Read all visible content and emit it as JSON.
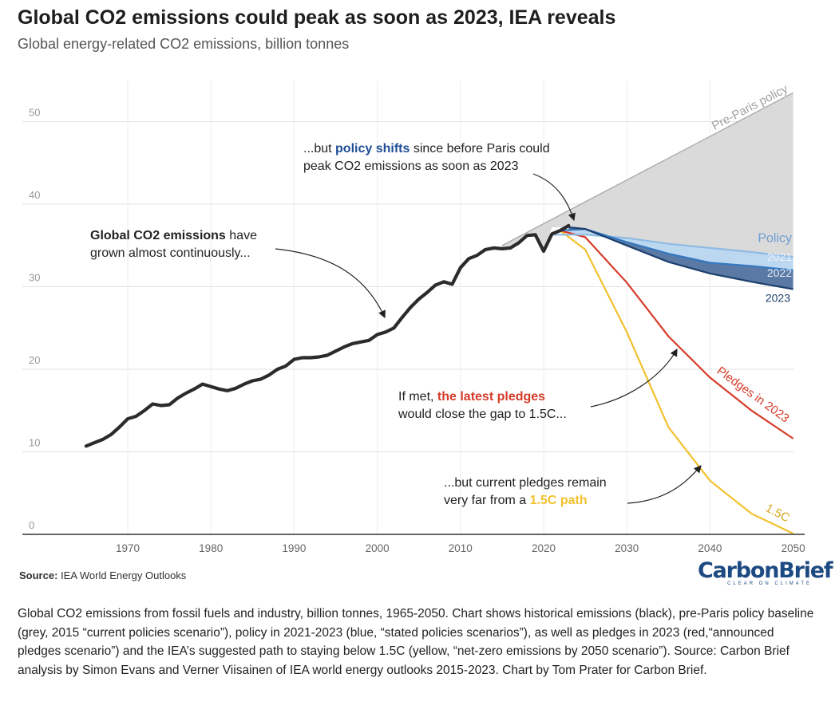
{
  "header": {
    "title": "Global CO2 emissions could peak as soon as 2023, IEA reveals",
    "subtitle": "Global energy-related CO2 emissions, billion tonnes"
  },
  "footer": {
    "source_prefix": "Source:",
    "source_text": "IEA World Energy Outlooks",
    "logo_text": "CarbonBrief",
    "logo_tagline": "CLEAR ON CLIMATE",
    "caption": "Global CO2 emissions from fossil fuels and industry, billion tonnes, 1965-2050. Chart shows historical emissions (black), pre-Paris policy baseline (grey, 2015 “current policies scenario”), policy in 2021-2023 (blue, “stated policies scenarios”), as well as pledges in 2023 (red,“announced pledges scenario”) and the IEA’s suggested path to staying below 1.5C (yellow, “net-zero emissions by 2050 scenario”). Source: Carbon Brief analysis by Simon Evans and Verner Viisainen of IEA world energy outlooks 2015-2023. Chart by Tom Prater for Carbon Brief."
  },
  "colors": {
    "historical": "#2b2b2b",
    "pre_paris_fill": "#dadada",
    "pre_paris_line": "#a8a8a8",
    "policy_2021": "#8fbbe3",
    "policy_2022": "#3478c0",
    "policy_2023": "#1d3f6e",
    "policy_band_light": "#bcd7f0",
    "policy_band_dark": "#5a7aa5",
    "pledges": "#d63c2a",
    "one_point_five": "#f2c12e",
    "annotation_blue": "#1f4e96",
    "annotation_red": "#d63c2a",
    "annotation_yellow": "#f2c12e"
  },
  "chart_data": {
    "type": "line",
    "xlim": [
      1965,
      2050
    ],
    "ylim": [
      0,
      55
    ],
    "x_ticks": [
      1970,
      1980,
      1990,
      2000,
      2010,
      2020,
      2030,
      2040,
      2050
    ],
    "y_ticks": [
      0,
      10,
      20,
      30,
      40,
      50
    ],
    "grid": true,
    "series": [
      {
        "key": "historical",
        "x": [
          1965,
          1966,
          1967,
          1968,
          1969,
          1970,
          1971,
          1972,
          1973,
          1974,
          1975,
          1976,
          1977,
          1978,
          1979,
          1980,
          1981,
          1982,
          1983,
          1984,
          1985,
          1986,
          1987,
          1988,
          1989,
          1990,
          1991,
          1992,
          1993,
          1994,
          1995,
          1996,
          1997,
          1998,
          1999,
          2000,
          2001,
          2002,
          2003,
          2004,
          2005,
          2006,
          2007,
          2008,
          2009,
          2010,
          2011,
          2012,
          2013,
          2014,
          2015,
          2016,
          2017,
          2018,
          2019,
          2020,
          2021,
          2022,
          2023
        ],
        "y": [
          10.7,
          11.1,
          11.5,
          12.1,
          13.0,
          14.0,
          14.3,
          15.0,
          15.8,
          15.6,
          15.7,
          16.5,
          17.1,
          17.6,
          18.2,
          17.9,
          17.6,
          17.4,
          17.7,
          18.2,
          18.6,
          18.8,
          19.3,
          20.0,
          20.4,
          21.2,
          21.4,
          21.4,
          21.5,
          21.7,
          22.2,
          22.7,
          23.1,
          23.3,
          23.5,
          24.2,
          24.5,
          25.0,
          26.3,
          27.5,
          28.5,
          29.3,
          30.2,
          30.6,
          30.3,
          32.3,
          33.4,
          33.8,
          34.5,
          34.7,
          34.6,
          34.7,
          35.3,
          36.2,
          36.3,
          34.3,
          36.4,
          36.8,
          37.4
        ]
      },
      {
        "key": "pre_paris",
        "name": "Pre-Paris policy",
        "x": [
          2015,
          2050
        ],
        "y": [
          35.0,
          53.5
        ]
      },
      {
        "key": "policy_2021",
        "name": "2021",
        "x": [
          2021,
          2025,
          2030,
          2035,
          2040,
          2045,
          2050
        ],
        "y": [
          36.3,
          36.3,
          35.9,
          35.2,
          34.7,
          34.2,
          33.6
        ]
      },
      {
        "key": "policy_2022",
        "name": "2022",
        "x": [
          2022,
          2025,
          2030,
          2035,
          2040,
          2045,
          2050
        ],
        "y": [
          36.8,
          37.0,
          35.4,
          34.0,
          32.9,
          32.5,
          32.0
        ]
      },
      {
        "key": "policy_2023",
        "name": "2023",
        "x": [
          2023,
          2025,
          2030,
          2035,
          2040,
          2045,
          2050
        ],
        "y": [
          37.2,
          37.0,
          35.0,
          33.0,
          31.6,
          30.6,
          29.7
        ]
      },
      {
        "key": "pledges",
        "name": "Pledges in 2023",
        "x": [
          2022,
          2025,
          2030,
          2035,
          2040,
          2045,
          2050
        ],
        "y": [
          36.8,
          36.0,
          30.5,
          24.0,
          19.0,
          15.0,
          11.6
        ]
      },
      {
        "key": "one_point_five",
        "name": "1.5C",
        "x": [
          2022,
          2025,
          2030,
          2035,
          2040,
          2045,
          2050
        ],
        "y": [
          36.8,
          34.5,
          24.5,
          13.0,
          6.5,
          2.5,
          0.1
        ]
      }
    ],
    "labels": {
      "policy": "Policy",
      "label_2021": "2021",
      "label_2022": "2022",
      "label_2023": "2023",
      "pre_paris": "Pre-Paris policy",
      "pledges": "Pledges in 2023",
      "one_point_five": "1.5C"
    },
    "annotations": {
      "growth_bold": "Global CO2 emissions",
      "growth_rest1": " have",
      "growth_line2": "grown almost continuously...",
      "policy_line1_pre": "...but ",
      "policy_line1_bold": "policy shifts",
      "policy_line1_post": " since before Paris could",
      "policy_line2": "peak CO2 emissions as soon as 2023",
      "pledge_line1_pre": "If met, ",
      "pledge_line1_bold": "the latest pledges",
      "pledge_line2": "would close the gap to 1.5C...",
      "onefive_line1": "...but current pledges remain",
      "onefive_line2_pre": "very far from a ",
      "onefive_line2_bold": "1.5C path"
    }
  }
}
